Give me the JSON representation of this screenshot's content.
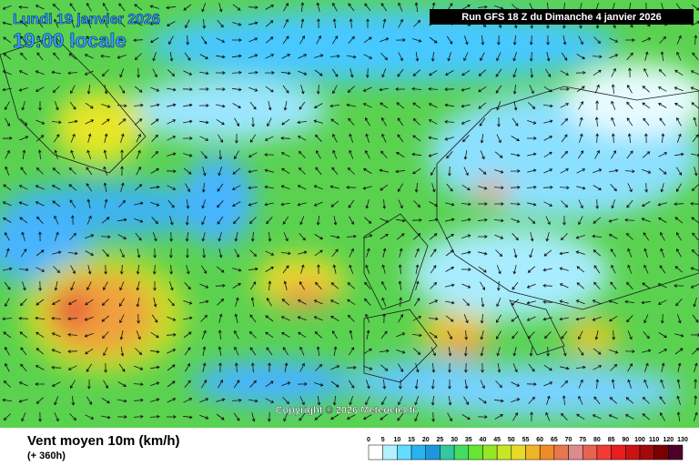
{
  "header": {
    "date": "Lundi 19 janvier 2026",
    "time": "19:00 locale",
    "run": "Run GFS 18 Z du Dimanche 4 janvier 2026"
  },
  "copyright": "Copyright © 2026 Meteociel.fr",
  "footer": {
    "title": "Vent moyen 10m (km/h)",
    "lead": "(+ 360h)"
  },
  "legend": {
    "ticks": [
      0,
      5,
      10,
      15,
      20,
      25,
      30,
      35,
      40,
      45,
      50,
      55,
      60,
      65,
      70,
      75,
      80,
      85,
      90,
      100,
      110,
      120,
      130
    ],
    "colors": [
      "#ffffff",
      "#b4f0ff",
      "#64dcff",
      "#28b4f0",
      "#1e96dc",
      "#32c8a0",
      "#46dc64",
      "#64e632",
      "#96e628",
      "#c8e628",
      "#e6dc28",
      "#f0b428",
      "#f08c28",
      "#e67850",
      "#dc8c8c",
      "#e66450",
      "#f03c32",
      "#e61e1e",
      "#c81414",
      "#a00a0a",
      "#780000",
      "#500028"
    ]
  }
}
